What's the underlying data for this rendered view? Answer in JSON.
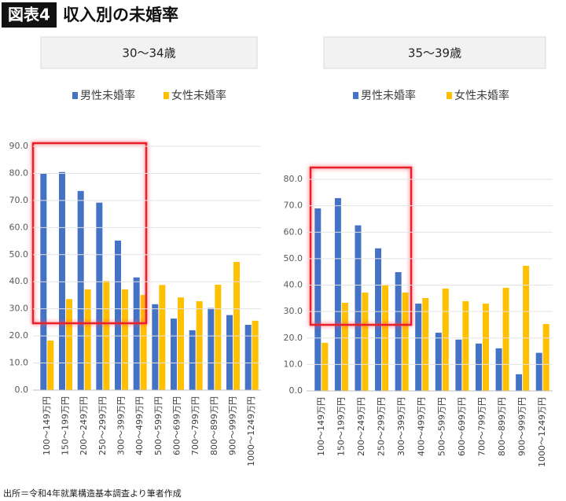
{
  "header": {
    "badge": "図表4",
    "title": "収入別の未婚率"
  },
  "chart_data": [
    {
      "type": "bar",
      "title": "30～34歳",
      "categories": [
        "100～149万円",
        "150～199万円",
        "200～249万円",
        "250～299万円",
        "300～399万円",
        "400～499万円",
        "500～599万円",
        "600～699万円",
        "700～799万円",
        "800～899万円",
        "900～999万円",
        "1000～1249万円"
      ],
      "series": [
        {
          "name": "男性未婚率",
          "color": "#4472c4",
          "values": [
            80.0,
            80.5,
            73.5,
            69.2,
            55.2,
            41.6,
            31.7,
            26.4,
            22.1,
            30.3,
            27.7,
            24.1
          ]
        },
        {
          "name": "女性未婚率",
          "color": "#ffc000",
          "values": [
            18.3,
            33.6,
            37.2,
            40.3,
            37.2,
            35.1,
            38.8,
            34.2,
            32.8,
            38.9,
            47.3,
            25.6
          ]
        }
      ],
      "ylim": [
        0,
        90
      ],
      "yticks": [
        {
          "value": 0,
          "label": "0.0"
        },
        {
          "value": 10,
          "label": "10.0"
        },
        {
          "value": 20,
          "label": "20.0"
        },
        {
          "value": 30,
          "label": "30.0"
        },
        {
          "value": 40,
          "label": "40.0"
        },
        {
          "value": 50,
          "label": "50.0"
        },
        {
          "value": 60,
          "label": "60.0"
        },
        {
          "value": 70,
          "label": "70.0"
        },
        {
          "value": 80,
          "label": "80.0"
        },
        {
          "value": 90,
          "label": "90.0"
        }
      ],
      "grid": true
    },
    {
      "type": "bar",
      "title": "35～39歳",
      "categories": [
        "100～149万円",
        "150～199万円",
        "200～249万円",
        "250～299万円",
        "300～399万円",
        "400～499万円",
        "500～599万円",
        "600～699万円",
        "700～799万円",
        "800～899万円",
        "900～999万円",
        "1000～1249万円"
      ],
      "series": [
        {
          "name": "男性未婚率",
          "color": "#4472c4",
          "values": [
            69.0,
            72.9,
            62.6,
            53.9,
            44.9,
            33.0,
            22.0,
            19.4,
            17.9,
            16.1,
            6.3,
            14.4
          ]
        },
        {
          "name": "女性未婚率",
          "color": "#ffc000",
          "values": [
            18.2,
            33.3,
            37.2,
            40.2,
            37.2,
            35.1,
            38.7,
            33.9,
            33.0,
            39.0,
            47.3,
            25.3
          ]
        }
      ],
      "ylim": [
        0,
        80
      ],
      "yticks": [
        {
          "value": 0,
          "label": "0.0"
        },
        {
          "value": 10,
          "label": "10.0"
        },
        {
          "value": 20,
          "label": "20.0"
        },
        {
          "value": 30,
          "label": "30.0"
        },
        {
          "value": 40,
          "label": "40.0"
        },
        {
          "value": 50,
          "label": "50.0"
        },
        {
          "value": 60,
          "label": "60.0"
        },
        {
          "value": 70,
          "label": "70.0"
        },
        {
          "value": 80,
          "label": "80.0"
        }
      ],
      "grid": true
    }
  ],
  "source": "出所＝令和4年就業構造基本調査より筆者作成"
}
